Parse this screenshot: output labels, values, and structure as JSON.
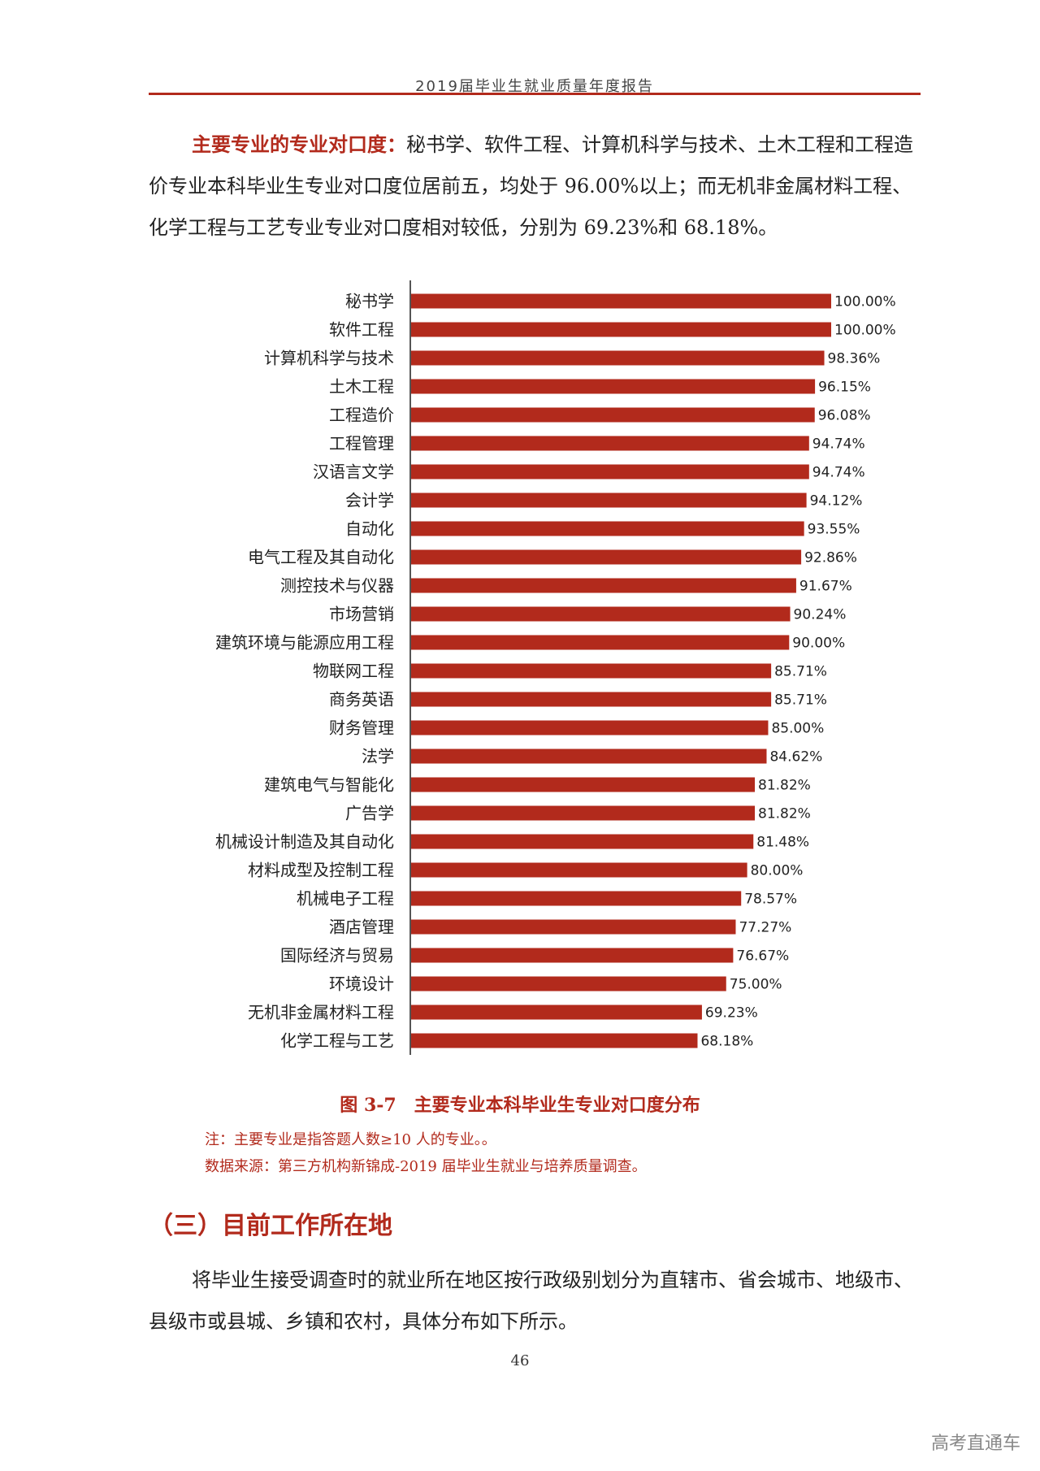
{
  "header": {
    "title": "2019届毕业生就业质量年度报告"
  },
  "intro": {
    "label": "主要专业的专业对口度：",
    "text": "秘书学、软件工程、计算机科学与技术、土木工程和工程造价专业本科毕业生专业对口度位居前五，均处于 96.00%以上；而无机非金属材料工程、化学工程与工艺专业专业对口度相对较低，分别为 69.23%和 68.18%。"
  },
  "chart_data": {
    "type": "bar",
    "orientation": "horizontal",
    "categories": [
      "秘书学",
      "软件工程",
      "计算机科学与技术",
      "土木工程",
      "工程造价",
      "工程管理",
      "汉语言文学",
      "会计学",
      "自动化",
      "电气工程及其自动化",
      "测控技术与仪器",
      "市场营销",
      "建筑环境与能源应用工程",
      "物联网工程",
      "商务英语",
      "财务管理",
      "法学",
      "建筑电气与智能化",
      "广告学",
      "机械设计制造及其自动化",
      "材料成型及控制工程",
      "机械电子工程",
      "酒店管理",
      "国际经济与贸易",
      "环境设计",
      "无机非金属材料工程",
      "化学工程与工艺"
    ],
    "values": [
      100.0,
      100.0,
      98.36,
      96.15,
      96.08,
      94.74,
      94.74,
      94.12,
      93.55,
      92.86,
      91.67,
      90.24,
      90.0,
      85.71,
      85.71,
      85.0,
      84.62,
      81.82,
      81.82,
      81.48,
      80.0,
      78.57,
      77.27,
      76.67,
      75.0,
      69.23,
      68.18
    ],
    "value_labels": [
      "100.00%",
      "100.00%",
      "98.36%",
      "96.15%",
      "96.08%",
      "94.74%",
      "94.74%",
      "94.12%",
      "93.55%",
      "92.86%",
      "91.67%",
      "90.24%",
      "90.00%",
      "85.71%",
      "85.71%",
      "85.00%",
      "84.62%",
      "81.82%",
      "81.82%",
      "81.48%",
      "80.00%",
      "78.57%",
      "77.27%",
      "76.67%",
      "75.00%",
      "69.23%",
      "68.18%"
    ],
    "xlim": [
      0,
      100
    ],
    "bar_color": "#b22a1c",
    "grid": false
  },
  "figure": {
    "caption": "图 3-7　主要专业本科毕业生专业对口度分布",
    "note": "注：主要专业是指答题人数≥10 人的专业。。",
    "source": "数据来源：第三方机构新锦成-2019 届毕业生就业与培养质量调查。"
  },
  "section": {
    "heading": "（三）目前工作所在地",
    "text": "将毕业生接受调查时的就业所在地区按行政级别划分为直辖市、省会城市、地级市、县级市或县城、乡镇和农村，具体分布如下所示。"
  },
  "page_number": "46",
  "watermark": "高考直通车"
}
